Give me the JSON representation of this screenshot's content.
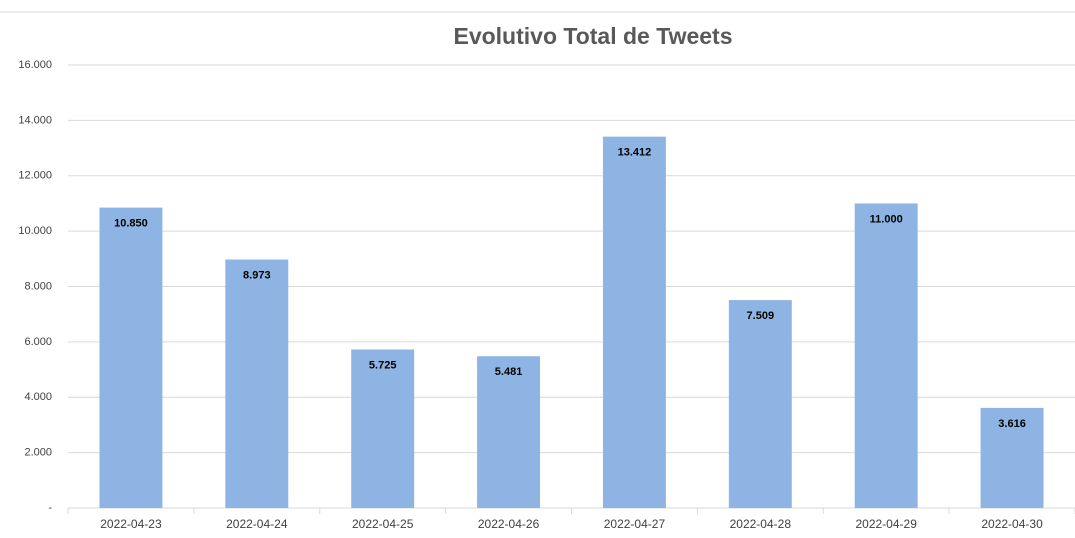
{
  "chart_data": {
    "type": "bar",
    "title": "Evolutivo Total de Tweets",
    "categories": [
      "2022-04-23",
      "2022-04-24",
      "2022-04-25",
      "2022-04-26",
      "2022-04-27",
      "2022-04-28",
      "2022-04-29",
      "2022-04-30"
    ],
    "values": [
      10850,
      8973,
      5725,
      5481,
      13412,
      7509,
      11000,
      3616
    ],
    "value_labels": [
      "10.850",
      "8.973",
      "5.725",
      "5.481",
      "13.412",
      "7.509",
      "11.000",
      "3.616"
    ],
    "color": "#8eb4e3",
    "ylim": [
      0,
      16000
    ],
    "yticks": [
      {
        "value": 0,
        "label": "-"
      },
      {
        "value": 2000,
        "label": "2.000"
      },
      {
        "value": 4000,
        "label": "4.000"
      },
      {
        "value": 6000,
        "label": "6.000"
      },
      {
        "value": 8000,
        "label": "8.000"
      },
      {
        "value": 10000,
        "label": "10.000"
      },
      {
        "value": 12000,
        "label": "12.000"
      },
      {
        "value": 14000,
        "label": "14.000"
      },
      {
        "value": 16000,
        "label": "16.000"
      }
    ],
    "grid": true
  }
}
